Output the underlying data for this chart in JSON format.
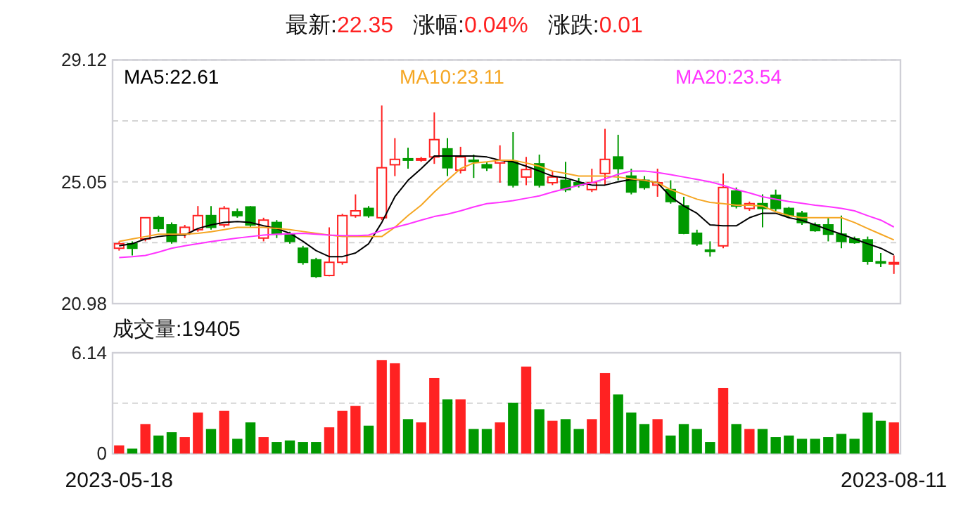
{
  "chart_data": [
    {
      "type": "candlestick",
      "annotations": [
        "最新:22.35",
        "涨幅:0.04%",
        "涨跌:0.01"
      ],
      "categories": [
        null,
        null,
        null,
        null,
        null,
        null,
        null,
        null,
        null,
        null,
        null,
        null,
        null,
        null,
        null,
        null,
        null,
        null,
        null,
        null,
        null,
        null,
        null,
        null,
        null,
        null,
        null,
        null,
        null,
        null,
        null,
        null,
        null,
        null,
        null,
        null,
        null,
        null,
        null,
        null,
        null,
        null,
        null,
        null,
        null,
        null,
        null,
        null,
        null,
        null,
        null,
        null,
        null,
        null,
        null,
        null,
        null,
        null,
        null,
        null
      ],
      "ohlc": [
        [
          22.83,
          23.06,
          22.75,
          22.98
        ],
        [
          22.98,
          23.06,
          22.59,
          22.83
        ],
        [
          23.14,
          23.85,
          23.06,
          23.85
        ],
        [
          23.85,
          23.92,
          23.38,
          23.49
        ],
        [
          23.61,
          23.69,
          22.98,
          23.06
        ],
        [
          23.3,
          23.61,
          23.17,
          23.53
        ],
        [
          23.45,
          24.24,
          23.38,
          23.92
        ],
        [
          23.92,
          24.24,
          23.45,
          23.53
        ],
        [
          23.61,
          24.24,
          23.53,
          24.16
        ],
        [
          24.05,
          24.16,
          23.85,
          23.92
        ],
        [
          24.21,
          24.24,
          23.53,
          23.61
        ],
        [
          23.17,
          23.85,
          23.06,
          23.77
        ],
        [
          23.69,
          23.77,
          23.17,
          23.3
        ],
        [
          23.3,
          23.38,
          22.98,
          23.06
        ],
        [
          22.83,
          22.91,
          22.28,
          22.36
        ],
        [
          22.44,
          22.51,
          21.84,
          21.89
        ],
        [
          21.92,
          23.53,
          21.89,
          22.36
        ],
        [
          22.36,
          23.98,
          22.28,
          23.92
        ],
        [
          23.92,
          24.63,
          23.85,
          24.08
        ],
        [
          24.16,
          24.24,
          23.85,
          23.92
        ],
        [
          23.85,
          27.6,
          23.77,
          25.52
        ],
        [
          25.62,
          26.51,
          25.24,
          25.8
        ],
        [
          25.82,
          26.19,
          25.49,
          25.78
        ],
        [
          25.78,
          25.88,
          25.72,
          25.82
        ],
        [
          25.88,
          27.37,
          25.65,
          26.46
        ],
        [
          26.15,
          26.51,
          25.24,
          25.52
        ],
        [
          25.44,
          26.22,
          25.33,
          25.88
        ],
        [
          25.77,
          25.96,
          25.18,
          25.75
        ],
        [
          25.62,
          25.72,
          25.41,
          25.52
        ],
        [
          25.68,
          26.27,
          25.02,
          25.77
        ],
        [
          25.72,
          26.71,
          24.86,
          24.94
        ],
        [
          25.21,
          25.88,
          24.94,
          25.46
        ],
        [
          25.65,
          25.96,
          24.86,
          24.94
        ],
        [
          25.02,
          25.41,
          24.94,
          25.21
        ],
        [
          25.1,
          25.72,
          24.71,
          24.79
        ],
        [
          25.02,
          25.18,
          24.86,
          24.94
        ],
        [
          24.79,
          25.49,
          24.71,
          25.02
        ],
        [
          25.33,
          26.82,
          24.94,
          25.8
        ],
        [
          25.88,
          26.62,
          25.1,
          25.49
        ],
        [
          25.24,
          25.49,
          24.63,
          24.71
        ],
        [
          25.1,
          25.24,
          24.79,
          24.86
        ],
        [
          24.94,
          25.49,
          24.55,
          25.02
        ],
        [
          24.79,
          25.1,
          24.32,
          24.39
        ],
        [
          24.24,
          24.55,
          23.3,
          23.33
        ],
        [
          23.33,
          23.45,
          22.91,
          22.98
        ],
        [
          22.77,
          23.06,
          22.55,
          22.75
        ],
        [
          22.91,
          25.33,
          22.83,
          24.86
        ],
        [
          24.74,
          24.86,
          24.16,
          24.24
        ],
        [
          24.16,
          24.39,
          24.08,
          24.32
        ],
        [
          24.32,
          24.63,
          23.53,
          24.16
        ],
        [
          24.6,
          24.79,
          24.08,
          24.16
        ],
        [
          24.16,
          24.21,
          23.85,
          23.92
        ],
        [
          24.0,
          24.08,
          23.61,
          23.69
        ],
        [
          23.61,
          23.69,
          23.38,
          23.42
        ],
        [
          23.61,
          23.85,
          23.06,
          23.3
        ],
        [
          23.3,
          23.92,
          22.83,
          23.06
        ],
        [
          23.14,
          23.22,
          22.98,
          23.02
        ],
        [
          23.11,
          23.22,
          22.28,
          22.39
        ],
        [
          22.38,
          22.67,
          22.2,
          22.34
        ],
        [
          22.34,
          22.59,
          21.97,
          22.35
        ]
      ],
      "colors": [
        "#ff2222",
        "#009900",
        "#ff2222",
        "#009900",
        "#009900",
        "#ff2222",
        "#ff2222",
        "#009900",
        "#ff2222",
        "#009900",
        "#009900",
        "#ff2222",
        "#009900",
        "#009900",
        "#009900",
        "#009900",
        "#ff2222",
        "#ff2222",
        "#ff2222",
        "#009900",
        "#ff2222",
        "#ff2222",
        "#009900",
        "#ff2222",
        "#ff2222",
        "#009900",
        "#ff2222",
        "#009900",
        "#009900",
        "#ff2222",
        "#009900",
        "#ff2222",
        "#009900",
        "#ff2222",
        "#009900",
        "#009900",
        "#ff2222",
        "#ff2222",
        "#009900",
        "#009900",
        "#009900",
        "#ff2222",
        "#009900",
        "#009900",
        "#009900",
        "#009900",
        "#ff2222",
        "#009900",
        "#ff2222",
        "#009900",
        "#009900",
        "#009900",
        "#009900",
        "#009900",
        "#009900",
        "#009900",
        "#009900",
        "#009900",
        "#009900",
        "#ff2222"
      ],
      "series": [
        {
          "name": "MA5:22.61",
          "type": "line",
          "color": "#000000",
          "values": [
            22.91,
            22.98,
            23.14,
            23.22,
            23.27,
            23.27,
            23.49,
            23.61,
            23.69,
            23.72,
            23.69,
            23.58,
            23.49,
            23.33,
            23.06,
            22.75,
            22.55,
            22.55,
            22.67,
            22.98,
            23.69,
            24.55,
            25.1,
            25.49,
            25.91,
            25.91,
            25.91,
            25.91,
            25.88,
            25.77,
            25.72,
            25.57,
            25.41,
            25.24,
            25.18,
            25.05,
            24.94,
            24.94,
            25.05,
            25.13,
            25.1,
            25.02,
            24.55,
            24.24,
            24.0,
            23.61,
            23.58,
            23.58,
            23.85,
            24.0,
            24.0,
            23.85,
            23.76,
            23.61,
            23.45,
            23.3,
            23.14,
            22.98,
            22.83,
            22.61
          ]
        },
        {
          "name": "MA10:23.11",
          "type": "line",
          "color": "#f5a623",
          "values": [
            23.06,
            23.14,
            23.22,
            23.3,
            23.3,
            23.3,
            23.33,
            23.38,
            23.45,
            23.53,
            23.53,
            23.53,
            23.49,
            23.45,
            23.39,
            23.33,
            23.27,
            23.22,
            23.22,
            23.22,
            23.22,
            23.53,
            23.92,
            24.27,
            24.71,
            25.1,
            25.49,
            25.68,
            25.72,
            25.77,
            25.77,
            25.68,
            25.57,
            25.41,
            25.33,
            25.24,
            25.24,
            25.24,
            25.21,
            25.15,
            25.1,
            25.02,
            24.79,
            24.63,
            24.47,
            24.36,
            24.32,
            24.27,
            24.27,
            24.24,
            24.05,
            23.92,
            23.85,
            23.85,
            23.85,
            23.85,
            23.69,
            23.49,
            23.3,
            23.11
          ]
        },
        {
          "name": "MA20:23.54",
          "type": "line",
          "color": "#ff33ff",
          "values": [
            22.52,
            22.55,
            22.59,
            22.7,
            22.83,
            22.91,
            22.98,
            23.05,
            23.11,
            23.17,
            23.22,
            23.27,
            23.3,
            23.31,
            23.33,
            23.3,
            23.27,
            23.25,
            23.25,
            23.27,
            23.42,
            23.53,
            23.64,
            23.77,
            23.89,
            23.97,
            24.08,
            24.21,
            24.32,
            24.36,
            24.42,
            24.5,
            24.58,
            24.71,
            24.82,
            24.93,
            25.02,
            25.15,
            25.3,
            25.41,
            25.41,
            25.36,
            25.29,
            25.21,
            25.13,
            25.05,
            24.93,
            24.79,
            24.68,
            24.55,
            24.47,
            24.39,
            24.33,
            24.27,
            24.22,
            24.16,
            24.08,
            23.92,
            23.77,
            23.54
          ]
        }
      ],
      "ylim": [
        20.98,
        29.12
      ],
      "yticks": [
        29.12,
        {
          "value": 27.085,
          "label": null
        },
        25.05,
        {
          "value": 23.015,
          "label": null
        },
        20.98
      ],
      "grid": "y",
      "tick_labels": "y",
      "legend": "top"
    },
    {
      "type": "bar",
      "title": "成交量:19405",
      "categories": [
        "2023-05-18",
        null,
        null,
        null,
        null,
        null,
        null,
        null,
        null,
        null,
        null,
        null,
        null,
        null,
        null,
        null,
        null,
        null,
        null,
        null,
        null,
        null,
        null,
        null,
        null,
        null,
        null,
        null,
        null,
        null,
        null,
        null,
        null,
        null,
        null,
        null,
        null,
        null,
        null,
        null,
        null,
        null,
        null,
        null,
        null,
        null,
        null,
        null,
        null,
        null,
        null,
        null,
        null,
        null,
        null,
        null,
        null,
        null,
        null,
        "2023-08-11"
      ],
      "values": [
        0.5,
        0.3,
        1.8,
        1.1,
        1.3,
        1.0,
        2.5,
        1.5,
        2.6,
        0.9,
        1.9,
        1.0,
        0.7,
        0.8,
        0.7,
        0.7,
        1.6,
        2.6,
        2.9,
        1.7,
        5.7,
        5.5,
        2.1,
        1.9,
        4.6,
        3.3,
        3.3,
        1.5,
        1.5,
        1.9,
        3.1,
        5.3,
        2.7,
        2.0,
        2.1,
        1.5,
        2.1,
        4.9,
        3.6,
        2.5,
        1.8,
        2.1,
        1.1,
        1.8,
        1.5,
        0.7,
        4.0,
        1.8,
        1.5,
        1.5,
        1.0,
        1.1,
        0.9,
        0.9,
        1.0,
        1.2,
        0.9,
        2.5,
        2.0,
        1.9
      ],
      "colors": [
        "#ff2222",
        "#009900",
        "#ff2222",
        "#009900",
        "#009900",
        "#ff2222",
        "#ff2222",
        "#009900",
        "#ff2222",
        "#009900",
        "#009900",
        "#ff2222",
        "#009900",
        "#009900",
        "#009900",
        "#009900",
        "#ff2222",
        "#ff2222",
        "#ff2222",
        "#009900",
        "#ff2222",
        "#ff2222",
        "#009900",
        "#ff2222",
        "#ff2222",
        "#009900",
        "#ff2222",
        "#009900",
        "#009900",
        "#ff2222",
        "#009900",
        "#ff2222",
        "#009900",
        "#ff2222",
        "#009900",
        "#009900",
        "#ff2222",
        "#ff2222",
        "#009900",
        "#009900",
        "#009900",
        "#ff2222",
        "#009900",
        "#009900",
        "#009900",
        "#009900",
        "#ff2222",
        "#009900",
        "#ff2222",
        "#009900",
        "#009900",
        "#009900",
        "#009900",
        "#009900",
        "#009900",
        "#009900",
        "#009900",
        "#009900",
        "#009900",
        "#ff2222"
      ],
      "ylim": [
        0,
        6.14
      ],
      "yticks": [
        6.14,
        {
          "value": 3.07,
          "label": null
        },
        {
          "value": 0,
          "label": "0"
        }
      ],
      "grid": "y"
    }
  ]
}
